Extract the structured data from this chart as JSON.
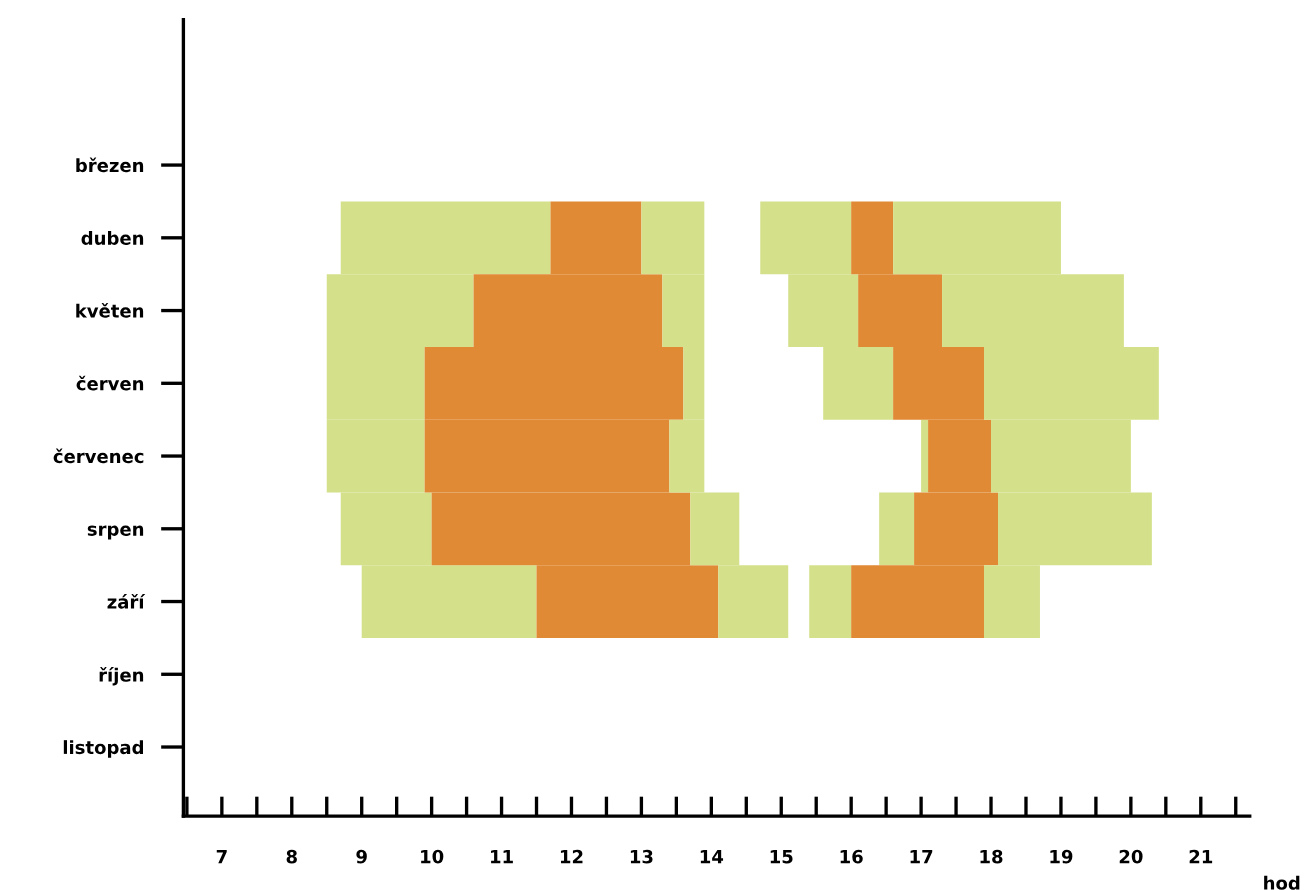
{
  "chart_data": {
    "type": "bar",
    "orientation": "horizontal",
    "xlabel": "hod",
    "categories": [
      "březen",
      "duben",
      "květen",
      "červen",
      "červenec",
      "srpen",
      "září",
      "říjen",
      "listopad"
    ],
    "series": [
      {
        "color": "#d4e08a",
        "base": [
          null,
          8.7,
          8.5,
          8.5,
          8.5,
          8.7,
          9.0,
          null,
          null
        ],
        "values": [
          null,
          3.0,
          2.1,
          1.4,
          1.4,
          1.3,
          2.5,
          null,
          null
        ]
      },
      {
        "color": "#e08a35",
        "base": [
          null,
          11.7,
          10.6,
          9.9,
          9.9,
          10.0,
          11.5,
          null,
          null
        ],
        "values": [
          null,
          1.3,
          2.7,
          3.7,
          3.5,
          3.7,
          2.6,
          null,
          null
        ]
      },
      {
        "color": "#d4e08a",
        "base": [
          null,
          13.0,
          13.3,
          13.6,
          13.4,
          13.7,
          14.1,
          null,
          null
        ],
        "values": [
          null,
          0.9,
          0.6,
          0.3,
          0.5,
          0.7,
          1.0,
          null,
          null
        ]
      },
      {
        "color": "#d4e08a",
        "base": [
          null,
          14.7,
          15.1,
          15.6,
          17.0,
          16.4,
          15.4,
          null,
          null
        ],
        "values": [
          null,
          1.3,
          1.0,
          1.0,
          0.1,
          0.5,
          0.6,
          null,
          null
        ]
      },
      {
        "color": "#e08a35",
        "base": [
          null,
          16.0,
          16.1,
          16.6,
          17.1,
          16.9,
          16.0,
          null,
          null
        ],
        "values": [
          null,
          0.6,
          1.2,
          1.3,
          0.9,
          1.2,
          1.9,
          null,
          null
        ]
      },
      {
        "color": "#d4e08a",
        "base": [
          null,
          16.6,
          17.3,
          17.9,
          18.0,
          18.1,
          17.9,
          null,
          null
        ],
        "values": [
          null,
          2.4,
          2.6,
          2.5,
          2.0,
          2.2,
          0.8,
          null,
          null
        ]
      }
    ],
    "xlim": [
      6.45,
      21.7
    ],
    "xticks": [
      {
        "value": 6.5,
        "label": null
      },
      7,
      {
        "value": 7.5,
        "label": null
      },
      8,
      {
        "value": 8.5,
        "label": null
      },
      9,
      {
        "value": 9.5,
        "label": null
      },
      10,
      {
        "value": 10.5,
        "label": null
      },
      11,
      {
        "value": 11.5,
        "label": null
      },
      12,
      {
        "value": 12.5,
        "label": null
      },
      13,
      {
        "value": 13.5,
        "label": null
      },
      14,
      {
        "value": 14.5,
        "label": null
      },
      15,
      {
        "value": 15.5,
        "label": null
      },
      16,
      {
        "value": 16.5,
        "label": null
      },
      17,
      {
        "value": 17.5,
        "label": null
      },
      18,
      {
        "value": 18.5,
        "label": null
      },
      19,
      {
        "value": 19.5,
        "label": null
      },
      20,
      {
        "value": 20.5,
        "label": null
      },
      21,
      {
        "value": 21.5,
        "label": null
      }
    ]
  }
}
